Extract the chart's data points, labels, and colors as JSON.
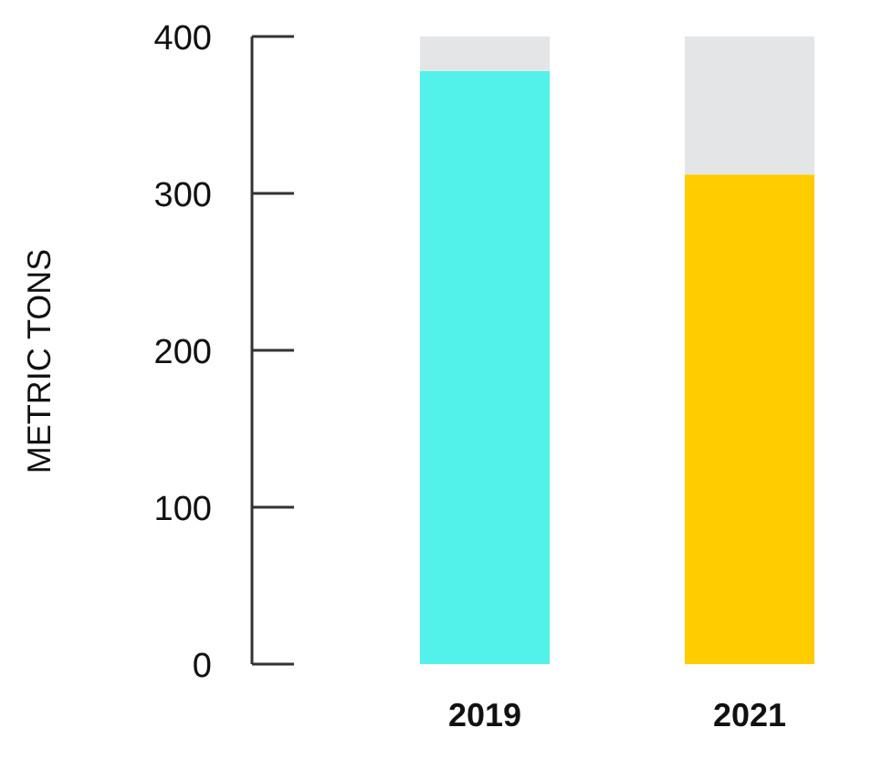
{
  "chart_data": {
    "type": "bar",
    "ylabel": "METRIC TONS",
    "categories": [
      "2019",
      "2021"
    ],
    "stacked": true,
    "series": [
      {
        "colors": [
          "#52f2ea",
          "#ffcc00"
        ],
        "values": [
          378,
          312
        ]
      },
      {
        "color": "#e4e5e7",
        "values": [
          22,
          88
        ]
      }
    ],
    "ylim": [
      0,
      400
    ],
    "yticks": [
      0,
      100,
      200,
      300,
      400
    ],
    "grid": false,
    "legend": false
  }
}
